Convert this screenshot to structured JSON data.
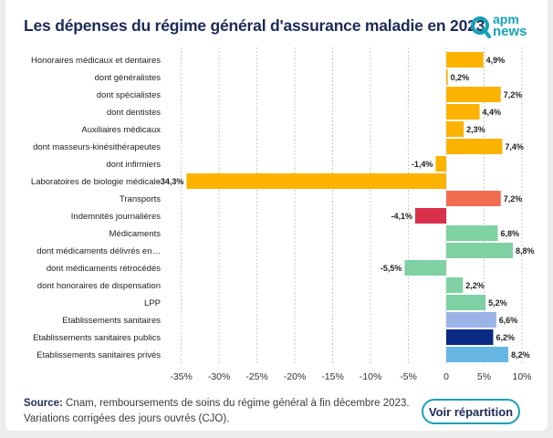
{
  "title": "Les dépenses du régime général d'assurance maladie en 2023",
  "logo": {
    "line1": "apm",
    "line2": "news"
  },
  "footer": {
    "source_label": "Source:",
    "source_text": " Cnam, remboursements de soins du régime général à fin décembre 2023.",
    "note": "Variations corrigées des jours ouvrés (CJO)."
  },
  "button_label": "Voir répartition",
  "chart_data": {
    "type": "bar",
    "orientation": "horizontal",
    "title": "Les dépenses du régime général d'assurance maladie en 2023",
    "xlim": [
      -37,
      10
    ],
    "ticks": [
      -35,
      -30,
      -25,
      -20,
      -15,
      -10,
      -5,
      0,
      5,
      10
    ],
    "tick_labels": [
      "-35%",
      "-30%",
      "-25%",
      "-20%",
      "-15%",
      "-10%",
      "-5%",
      "0",
      "5%",
      "10%"
    ],
    "categories": [
      "Honoraires médicaux et dentaires",
      "dont généralistes",
      "dont spécialistes",
      "dont dentistes",
      "Auxiliaires médicaux",
      "dont masseurs-kinésithérapeutes",
      "dont infirmiers",
      "Laboratoires de biologie médicale",
      "Transports",
      "Indemnités journalières",
      "Médicaments",
      "dont médicaments délivrés en…",
      "dont médicaments rétrocédés",
      "dont honoraires de dispensation",
      "LPP",
      "Etablissements sanitaires",
      "Etablissements sanitaires publics",
      "Etablissements sanitaires privés"
    ],
    "values": [
      4.9,
      0.2,
      7.2,
      4.4,
      2.3,
      7.4,
      -1.4,
      -34.3,
      7.2,
      -4.1,
      6.8,
      8.8,
      -5.5,
      2.2,
      5.2,
      6.6,
      6.2,
      8.2
    ],
    "value_labels": [
      "4,9%",
      "0,2%",
      "7,2%",
      "4,4%",
      "2,3%",
      "7,4%",
      "-1,4%",
      "-34,3%",
      "7,2%",
      "-4,1%",
      "6,8%",
      "8,8%",
      "-5,5%",
      "2,2%",
      "5,2%",
      "6,6%",
      "6,2%",
      "8,2%"
    ],
    "colors": [
      "#fbb300",
      "#fbb300",
      "#fbb300",
      "#fbb300",
      "#fbb300",
      "#fbb300",
      "#fbb300",
      "#fbb300",
      "#f26d50",
      "#d9304c",
      "#7fd1a4",
      "#7fd1a4",
      "#7fd1a4",
      "#7fd1a4",
      "#7fd1a4",
      "#9bb3e6",
      "#0b2a83",
      "#66b6e4"
    ],
    "grid": true
  }
}
